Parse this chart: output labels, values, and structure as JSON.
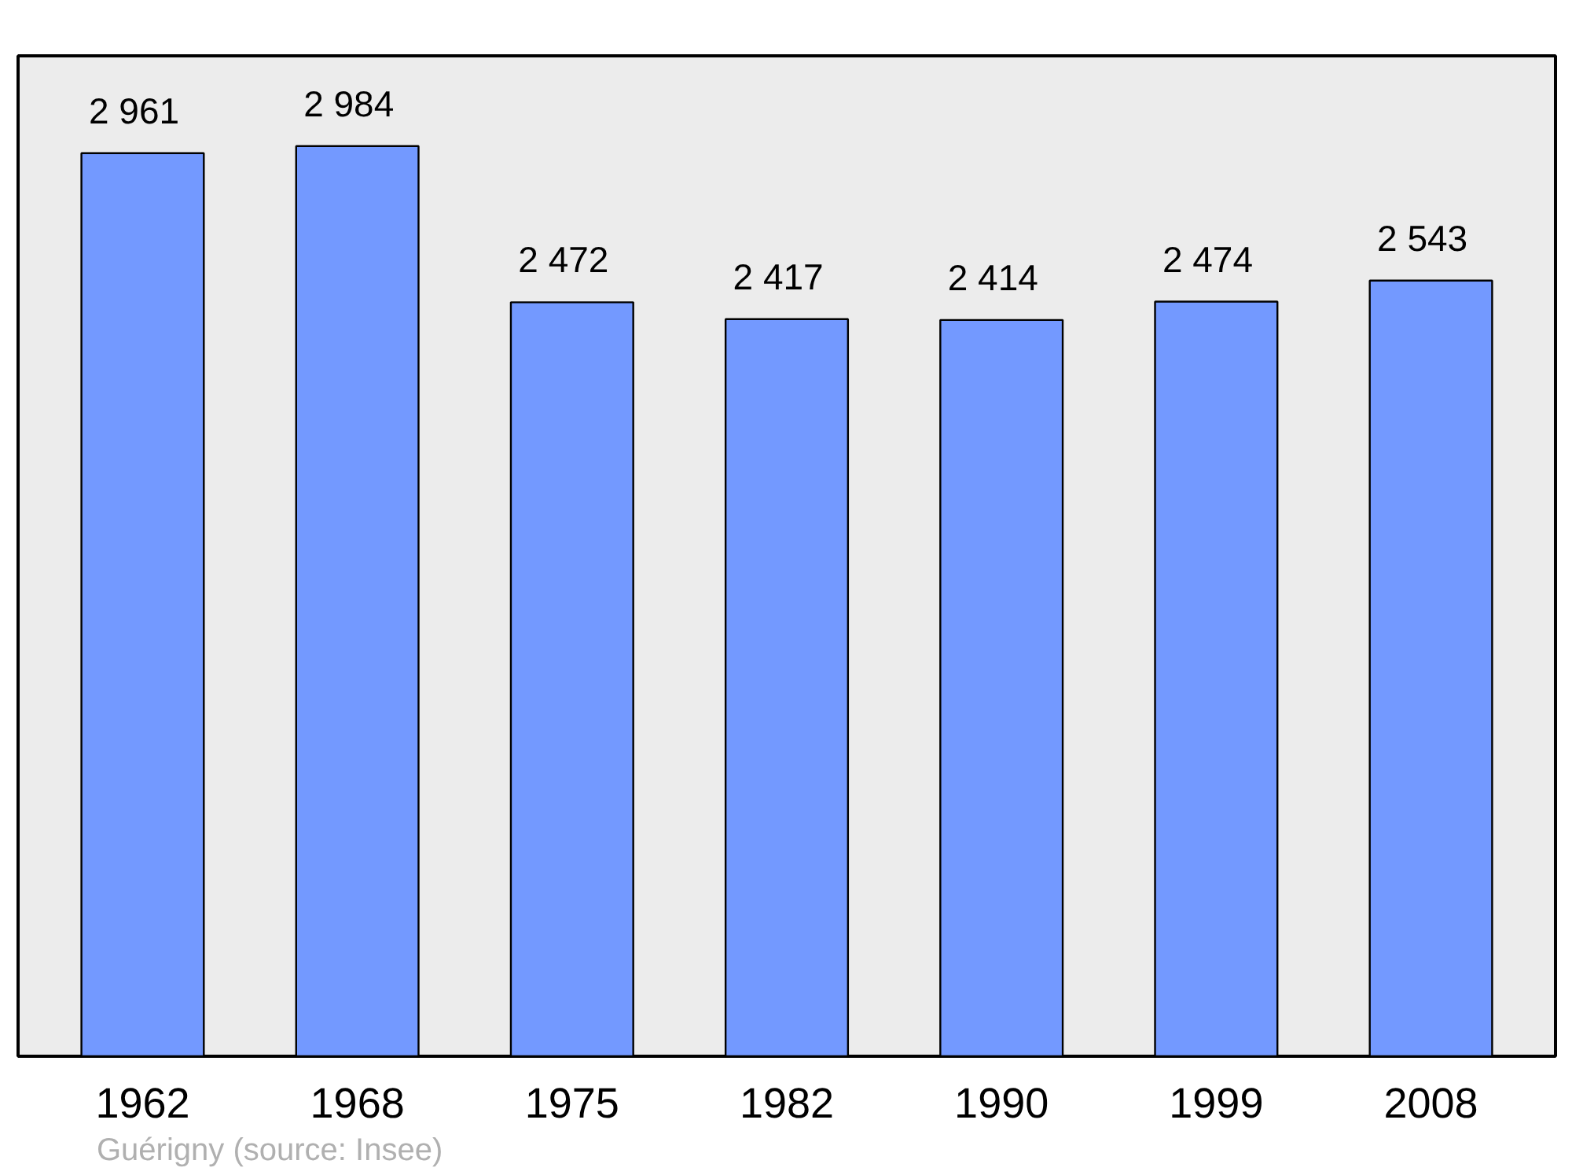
{
  "chart_data": {
    "type": "bar",
    "categories": [
      "1962",
      "1968",
      "1975",
      "1982",
      "1990",
      "1999",
      "2008"
    ],
    "values": [
      2961,
      2984,
      2472,
      2417,
      2414,
      2474,
      2543
    ],
    "value_labels": [
      "2 961",
      "2 984",
      "2 472",
      "2 417",
      "2 414",
      "2 474",
      "2 543"
    ],
    "color": "#7399ff",
    "ylim": [
      0,
      3280
    ],
    "tick_labels": "x",
    "grid": false,
    "annotations": [
      "Guérigny    (source: Insee)"
    ]
  }
}
